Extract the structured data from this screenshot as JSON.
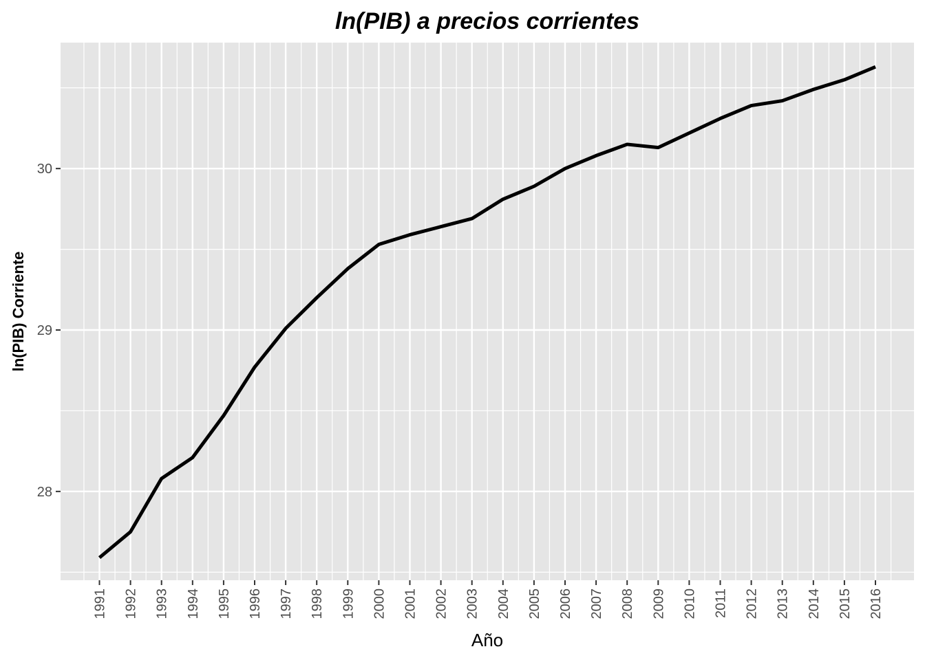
{
  "chart_data": {
    "type": "line",
    "title": "ln(PIB) a precios corrientes",
    "xlabel": "Año",
    "ylabel": "ln(PIB) Corriente",
    "x": [
      "1991",
      "1992",
      "1993",
      "1994",
      "1995",
      "1996",
      "1997",
      "1998",
      "1999",
      "2000",
      "2001",
      "2002",
      "2003",
      "2004",
      "2005",
      "2006",
      "2007",
      "2008",
      "2009",
      "2010",
      "2011",
      "2012",
      "2013",
      "2014",
      "2015",
      "2016"
    ],
    "series": [
      {
        "values": [
          27.59,
          27.75,
          28.08,
          28.21,
          28.47,
          28.77,
          29.01,
          29.2,
          29.38,
          29.53,
          29.59,
          29.64,
          29.69,
          29.81,
          29.89,
          30.0,
          30.08,
          30.15,
          30.13,
          30.22,
          30.31,
          30.39,
          30.42,
          30.49,
          30.55,
          30.63
        ]
      }
    ],
    "ylim": [
      27.45,
      30.78
    ],
    "yticks": [
      28,
      29,
      30
    ],
    "ytick_labels": [
      "28",
      "29",
      "30"
    ],
    "grid": true,
    "line_color": "#000000",
    "panel_color": "#e5e5e5",
    "grid_color": "#ffffff"
  }
}
